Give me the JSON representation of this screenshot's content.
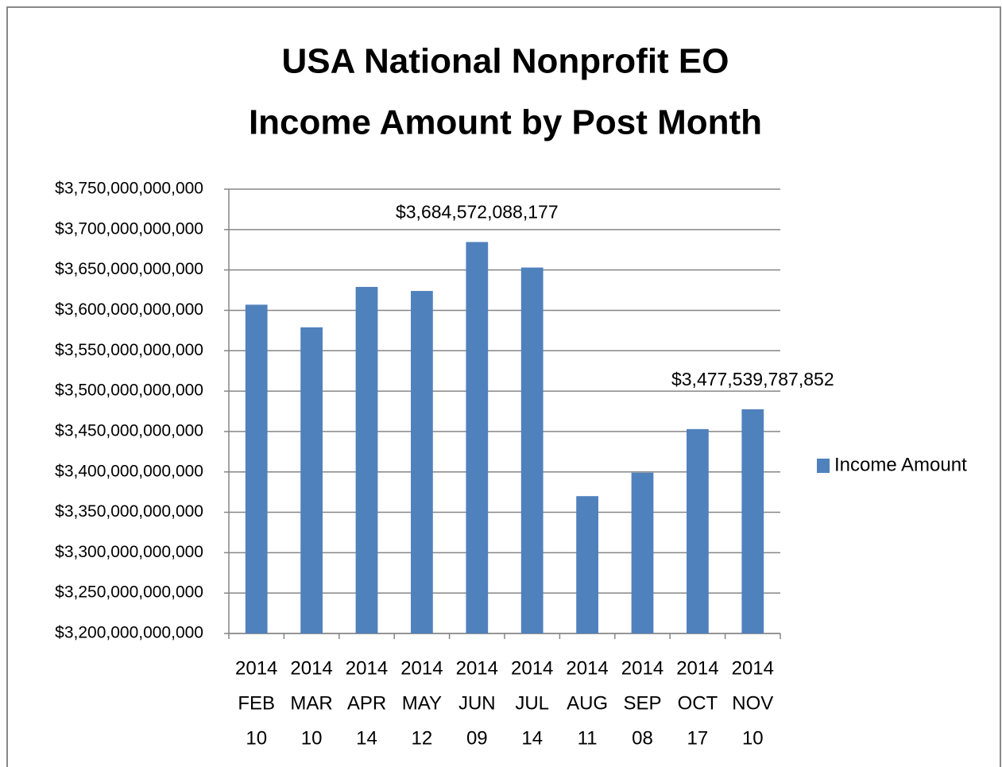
{
  "chart_data": {
    "type": "bar",
    "title": [
      "USA National Nonprofit EO",
      "Income Amount by Post Month"
    ],
    "categories": [
      [
        "2014",
        "FEB",
        "10"
      ],
      [
        "2014",
        "MAR",
        "10"
      ],
      [
        "2014",
        "APR",
        "14"
      ],
      [
        "2014",
        "MAY",
        "12"
      ],
      [
        "2014",
        "JUN",
        "09"
      ],
      [
        "2014",
        "JUL",
        "14"
      ],
      [
        "2014",
        "AUG",
        "11"
      ],
      [
        "2014",
        "SEP",
        "08"
      ],
      [
        "2014",
        "OCT",
        "17"
      ],
      [
        "2014",
        "NOV",
        "10"
      ]
    ],
    "series": [
      {
        "name": "Income Amount",
        "color": "#4f81bd",
        "values": [
          3607000000000,
          3579000000000,
          3629000000000,
          3624000000000,
          3684572088177,
          3653000000000,
          3370000000000,
          3399000000000,
          3453000000000,
          3477539787852
        ],
        "value_labels": [
          null,
          null,
          null,
          null,
          "$3,684,572,088,177",
          null,
          null,
          null,
          null,
          "$3,477,539,787,852"
        ]
      }
    ],
    "ylim": [
      3200000000000,
      3750000000000
    ],
    "yticks": [
      {
        "value": 3200000000000,
        "label": "$3,200,000,000,000"
      },
      {
        "value": 3250000000000,
        "label": "$3,250,000,000,000"
      },
      {
        "value": 3300000000000,
        "label": "$3,300,000,000,000"
      },
      {
        "value": 3350000000000,
        "label": "$3,350,000,000,000"
      },
      {
        "value": 3400000000000,
        "label": "$3,400,000,000,000"
      },
      {
        "value": 3450000000000,
        "label": "$3,450,000,000,000"
      },
      {
        "value": 3500000000000,
        "label": "$3,500,000,000,000"
      },
      {
        "value": 3550000000000,
        "label": "$3,550,000,000,000"
      },
      {
        "value": 3600000000000,
        "label": "$3,600,000,000,000"
      },
      {
        "value": 3650000000000,
        "label": "$3,650,000,000,000"
      },
      {
        "value": 3700000000000,
        "label": "$3,700,000,000,000"
      },
      {
        "value": 3750000000000,
        "label": "$3,750,000,000,000"
      }
    ],
    "grid": true,
    "legend": "right"
  }
}
